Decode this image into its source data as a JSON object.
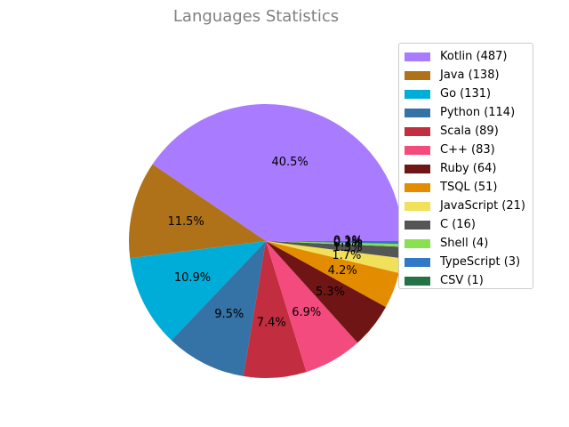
{
  "chart_data": {
    "type": "pie",
    "title": "Languages Statistics",
    "legend_position": "right",
    "slices": [
      {
        "name": "Kotlin",
        "value": 487,
        "legend": "Kotlin (487)",
        "label": "40.5%",
        "color": "#a97bff"
      },
      {
        "name": "Java",
        "value": 138,
        "legend": "Java (138)",
        "label": "11.5%",
        "color": "#b07219"
      },
      {
        "name": "Go",
        "value": 131,
        "legend": "Go (131)",
        "label": "10.9%",
        "color": "#00add8"
      },
      {
        "name": "Python",
        "value": 114,
        "legend": "Python (114)",
        "label": "9.5%",
        "color": "#3572a5"
      },
      {
        "name": "Scala",
        "value": 89,
        "legend": "Scala (89)",
        "label": "7.4%",
        "color": "#c22d40"
      },
      {
        "name": "C++",
        "value": 83,
        "legend": "C++ (83)",
        "label": "6.9%",
        "color": "#f34b7d"
      },
      {
        "name": "Ruby",
        "value": 64,
        "legend": "Ruby (64)",
        "label": "5.3%",
        "color": "#701516"
      },
      {
        "name": "TSQL",
        "value": 51,
        "legend": "TSQL (51)",
        "label": "4.2%",
        "color": "#e38c00"
      },
      {
        "name": "JavaScript",
        "value": 21,
        "legend": "JavaScript (21)",
        "label": "1.7%",
        "color": "#f1e05a"
      },
      {
        "name": "C",
        "value": 16,
        "legend": "C (16)",
        "label": "1.3%",
        "color": "#555555"
      },
      {
        "name": "Shell",
        "value": 4,
        "legend": "Shell (4)",
        "label": "0.3%",
        "color": "#89e051"
      },
      {
        "name": "TypeScript",
        "value": 3,
        "legend": "TypeScript (3)",
        "label": "0.2%",
        "color": "#3178c6"
      },
      {
        "name": "CSV",
        "value": 1,
        "legend": "CSV (1)",
        "label": "0.1%",
        "color": "#237346"
      }
    ]
  }
}
